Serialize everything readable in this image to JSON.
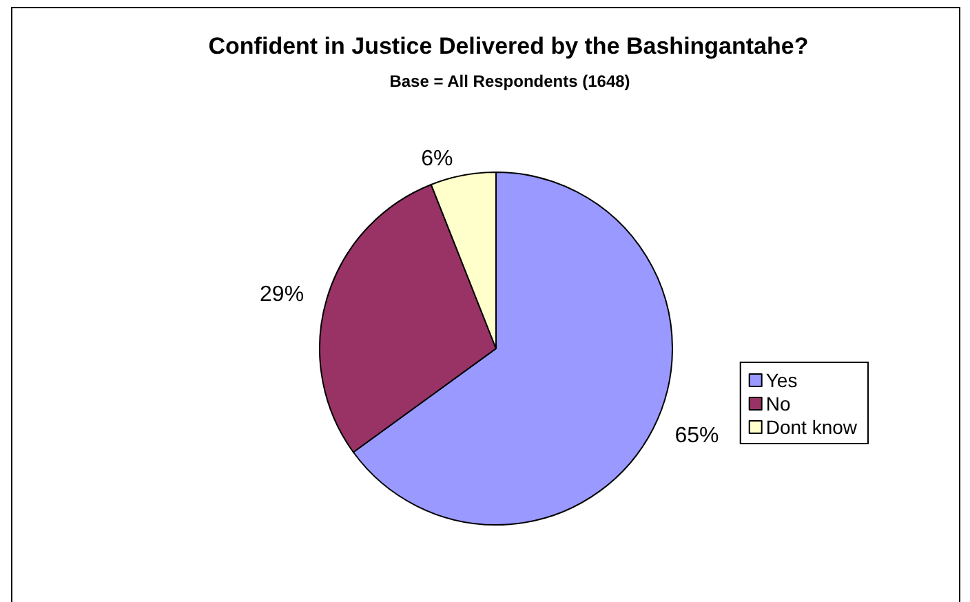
{
  "chart_data": {
    "type": "pie",
    "title": "Confident in Justice Delivered by the Bashingantahe?",
    "subtitle": "Base = All Respondents (1648)",
    "categories": [
      "Yes",
      "No",
      "Dont know"
    ],
    "values": [
      65,
      29,
      6
    ],
    "colors": [
      "#9999ff",
      "#993366",
      "#ffffcc"
    ],
    "value_labels": [
      "65%",
      "29%",
      "6%"
    ],
    "legend": "right"
  }
}
